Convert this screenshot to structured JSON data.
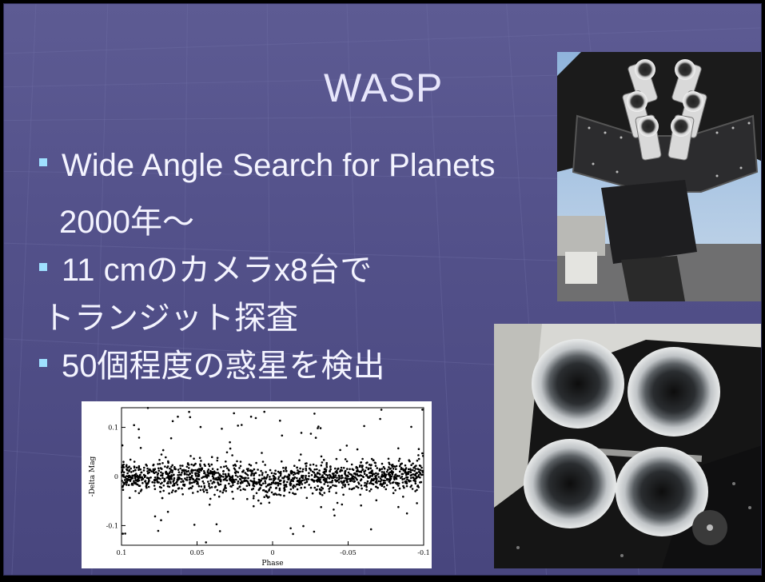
{
  "slide": {
    "title": "WASP",
    "bullets": [
      {
        "text": "Wide Angle Search for Planets",
        "cont": "2000年～"
      },
      {
        "text": "11 cmのカメラx8台で",
        "cont": "トランジット探査"
      },
      {
        "text": "50個程度の惑星を検出",
        "cont": ""
      }
    ]
  },
  "colors": {
    "background": "#53518a",
    "text": "#f4f4ff",
    "title": "#e7e6fb",
    "bullet_marker": "#9fe0ff"
  },
  "chart_data": {
    "type": "scatter",
    "xlabel": "Phase",
    "ylabel": "-Delta Mag",
    "xlim": [
      0.1,
      -0.1
    ],
    "ylim": [
      -0.14,
      0.14
    ],
    "x_reversed": true,
    "xticks": [
      "0.1",
      "0.05",
      "0",
      "-0.05",
      "-0.1"
    ],
    "yticks": [
      "0.1",
      "0",
      "-0.1"
    ],
    "trend": [
      [
        0.1,
        0.0
      ],
      [
        0.05,
        0.0
      ],
      [
        0.025,
        -0.003
      ],
      [
        0.012,
        -0.01
      ],
      [
        0.0,
        -0.016
      ],
      [
        -0.012,
        -0.01
      ],
      [
        -0.025,
        -0.003
      ],
      [
        -0.05,
        0.0
      ],
      [
        -0.1,
        0.0
      ]
    ],
    "scatter_sigma": 0.015,
    "outlier_range": [
      -0.14,
      0.14
    ]
  }
}
